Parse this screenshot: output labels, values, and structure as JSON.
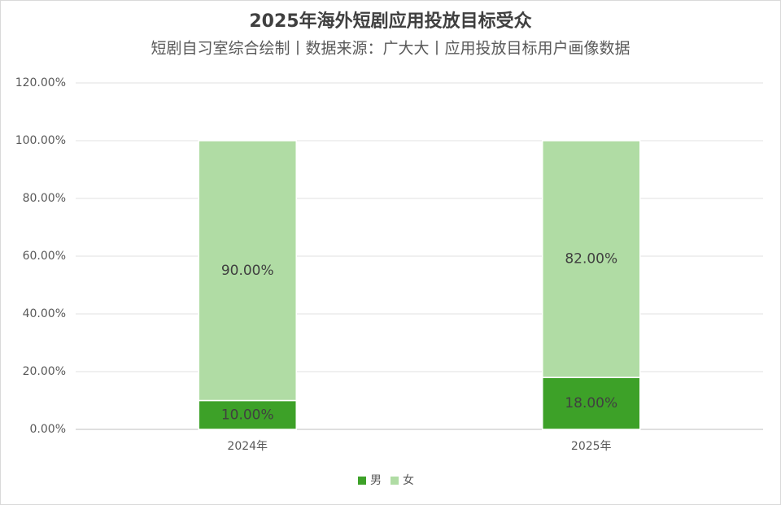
{
  "chart_data": {
    "type": "stacked_bar",
    "title": "2025年海外短剧应用投放目标受众",
    "subtitle": "短剧自习室综合绘制丨数据来源：广大大丨应用投放目标用户画像数据",
    "categories": [
      "2024年",
      "2025年"
    ],
    "series": [
      {
        "name": "男",
        "color": "#3da128",
        "values": [
          10,
          18
        ],
        "value_labels": [
          "10.00%",
          "18.00%"
        ]
      },
      {
        "name": "女",
        "color": "#b0dca4",
        "values": [
          90,
          82
        ],
        "value_labels": [
          "90.00%",
          "82.00%"
        ]
      }
    ],
    "ylim": [
      0,
      120
    ],
    "yticks": [
      {
        "value": 0,
        "label": "0.00%"
      },
      {
        "value": 20,
        "label": "20.00%"
      },
      {
        "value": 40,
        "label": "40.00%"
      },
      {
        "value": 60,
        "label": "60.00%"
      },
      {
        "value": 80,
        "label": "80.00%"
      },
      {
        "value": 100,
        "label": "100.00%"
      },
      {
        "value": 120,
        "label": "120.00%"
      }
    ],
    "grid": true,
    "legend": "bottom"
  }
}
